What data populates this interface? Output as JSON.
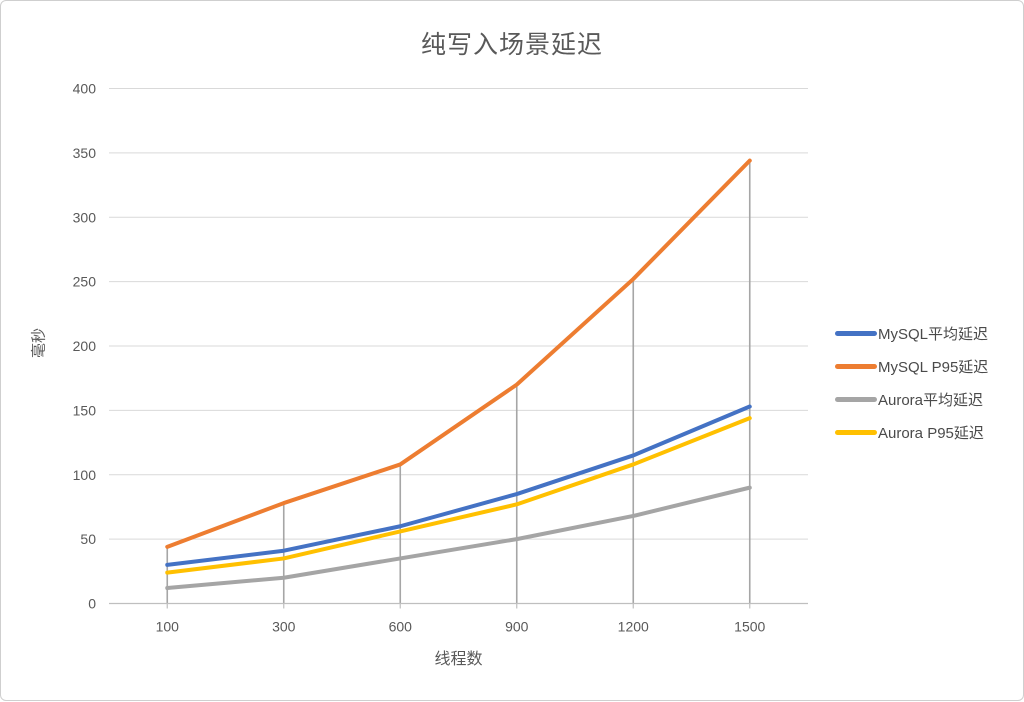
{
  "chart_data": {
    "type": "line",
    "title": "纯写入场景延迟",
    "xlabel": "线程数",
    "ylabel": "毫秒",
    "categories": [
      "100",
      "300",
      "600",
      "900",
      "1200",
      "1500"
    ],
    "series": [
      {
        "name": "MySQL平均延迟",
        "color": "#4472C4",
        "values": [
          30,
          41,
          60,
          85,
          115,
          153
        ]
      },
      {
        "name": "MySQL P95延迟",
        "color": "#ED7D31",
        "values": [
          44,
          78,
          108,
          170,
          252,
          344
        ]
      },
      {
        "name": "Aurora平均延迟",
        "color": "#A5A5A5",
        "values": [
          12,
          20,
          35,
          50,
          68,
          90
        ]
      },
      {
        "name": "Aurora P95延迟",
        "color": "#FFC000",
        "values": [
          24,
          35,
          56,
          77,
          108,
          144
        ]
      }
    ],
    "ylim": [
      0,
      400
    ],
    "ytick_step": 50,
    "grid": true,
    "drop_lines": true,
    "legend_position": "right"
  },
  "style": {
    "gridline_color": "#D9D9D9",
    "axis_line_color": "#BFBFBF",
    "drop_line_color": "#A6A6A6",
    "text_color": "#595959"
  }
}
